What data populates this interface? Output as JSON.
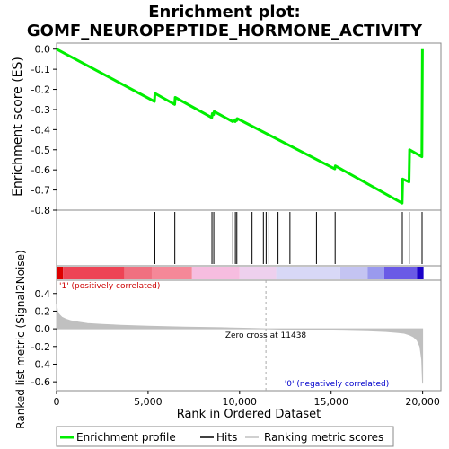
{
  "chart_data": {
    "type": "line",
    "title": "Enrichment plot:",
    "subtitle": "GOMF_NEUROPEPTIDE_HORMONE_ACTIVITY",
    "es_panel": {
      "ylabel": "Enrichment score (ES)",
      "ylim": [
        -0.8,
        0.03
      ],
      "yticks": [
        "0.0",
        "-0.1",
        "-0.2",
        "-0.3",
        "-0.4",
        "-0.5",
        "-0.6",
        "-0.7",
        "-0.8"
      ],
      "ytick_values": [
        0.0,
        -0.1,
        -0.2,
        -0.3,
        -0.4,
        -0.5,
        -0.6,
        -0.7,
        -0.8
      ],
      "series": [
        {
          "name": "Enrichment profile",
          "color": "#00ee00",
          "x": [
            0,
            5350,
            5380,
            6450,
            6480,
            8480,
            8510,
            8580,
            8610,
            9620,
            9650,
            9760,
            9790,
            9840,
            9870,
            15200,
            15230,
            18880,
            18910,
            19260,
            19290,
            19960,
            19990
          ],
          "y": [
            0.0,
            -0.26,
            -0.22,
            -0.275,
            -0.24,
            -0.34,
            -0.32,
            -0.325,
            -0.31,
            -0.36,
            -0.355,
            -0.36,
            -0.35,
            -0.355,
            -0.345,
            -0.595,
            -0.58,
            -0.765,
            -0.645,
            -0.66,
            -0.5,
            -0.535,
            0.0
          ]
        }
      ]
    },
    "hits": {
      "name": "Hits",
      "color": "#000000",
      "positions": [
        5370,
        6460,
        8490,
        8590,
        9630,
        9770,
        9850,
        10680,
        11300,
        11450,
        11600,
        12100,
        12750,
        14200,
        15220,
        18890,
        19270,
        19970
      ]
    },
    "ranking_bar": {
      "segments": [
        {
          "from": 0,
          "to": 350,
          "color": "#dd0000"
        },
        {
          "from": 350,
          "to": 3700,
          "color": "#ee4455"
        },
        {
          "from": 3700,
          "to": 5200,
          "color": "#f07080"
        },
        {
          "from": 5200,
          "to": 7400,
          "color": "#f58898"
        },
        {
          "from": 7400,
          "to": 10000,
          "color": "#f6bde0"
        },
        {
          "from": 10000,
          "to": 12000,
          "color": "#eed0ee"
        },
        {
          "from": 12000,
          "to": 15500,
          "color": "#d8d8f6"
        },
        {
          "from": 15500,
          "to": 17000,
          "color": "#c4c4f2"
        },
        {
          "from": 17000,
          "to": 17900,
          "color": "#9a9aee"
        },
        {
          "from": 17900,
          "to": 19700,
          "color": "#6a5ae6"
        },
        {
          "from": 19700,
          "to": 20050,
          "color": "#1a00c8"
        }
      ]
    },
    "metric_panel": {
      "ylabel": "Ranked list metric (Signal2Noise)",
      "ylim": [
        -0.7,
        0.55
      ],
      "yticks": [
        "0.4",
        "0.2",
        "0.0",
        "-0.2",
        "-0.4",
        "-0.6"
      ],
      "ytick_values": [
        0.4,
        0.2,
        0.0,
        -0.2,
        -0.4,
        -0.6
      ],
      "color": "#c0c0c0",
      "x": [
        0,
        50,
        150,
        300,
        500,
        800,
        1200,
        1700,
        2500,
        3500,
        5000,
        7000,
        9000,
        10500,
        11438,
        12500,
        14000,
        15500,
        17000,
        18000,
        18600,
        19000,
        19300,
        19500,
        19700,
        19850,
        19950,
        20000
      ],
      "y": [
        0.28,
        0.2,
        0.16,
        0.13,
        0.11,
        0.09,
        0.075,
        0.06,
        0.05,
        0.04,
        0.03,
        0.02,
        0.012,
        0.005,
        0.0,
        -0.005,
        -0.01,
        -0.015,
        -0.022,
        -0.03,
        -0.04,
        -0.05,
        -0.07,
        -0.09,
        -0.13,
        -0.2,
        -0.35,
        -0.62
      ],
      "zero_cross_label": "Zero cross at 11438",
      "zero_cross": 11438,
      "positive_label": "'1' (positively correlated)",
      "negative_label": "'0' (negatively correlated)",
      "positive_color": "#cc0000",
      "negative_color": "#0000cc"
    },
    "x_axis": {
      "xlabel": "Rank in Ordered Dataset",
      "xlim": [
        0,
        21000
      ],
      "xticks": [
        "0",
        "5,000",
        "10,000",
        "15,000",
        "20,000"
      ],
      "xtick_values": [
        0,
        5000,
        10000,
        15000,
        20000
      ]
    },
    "legend": {
      "position": "bottom",
      "items": [
        {
          "label": "Enrichment profile",
          "color": "#00ee00"
        },
        {
          "label": "Hits",
          "color": "#000000"
        },
        {
          "label": "Ranking metric scores",
          "color": "#c0c0c0"
        }
      ]
    }
  }
}
